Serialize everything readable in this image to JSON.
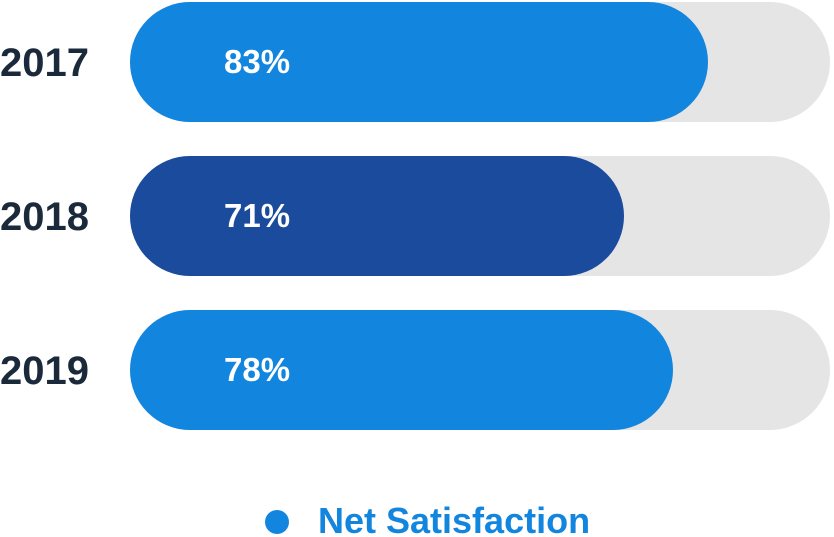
{
  "chart_data": {
    "type": "bar",
    "orientation": "horizontal",
    "categories": [
      "2017",
      "2018",
      "2019"
    ],
    "series": [
      {
        "name": "Net Satisfaction",
        "values": [
          83,
          71,
          78
        ],
        "value_labels": [
          "83%",
          "71%",
          "78%"
        ]
      }
    ],
    "xlim": [
      0,
      100
    ],
    "grid": false,
    "legend_position": "bottom-center",
    "colors": {
      "bars": [
        "#1285df",
        "#1a4b9d",
        "#1285df"
      ],
      "track": "#e5e5e5",
      "legend": "#1285df",
      "category_text": "#1b2a3a",
      "value_text": "#ffffff"
    }
  }
}
